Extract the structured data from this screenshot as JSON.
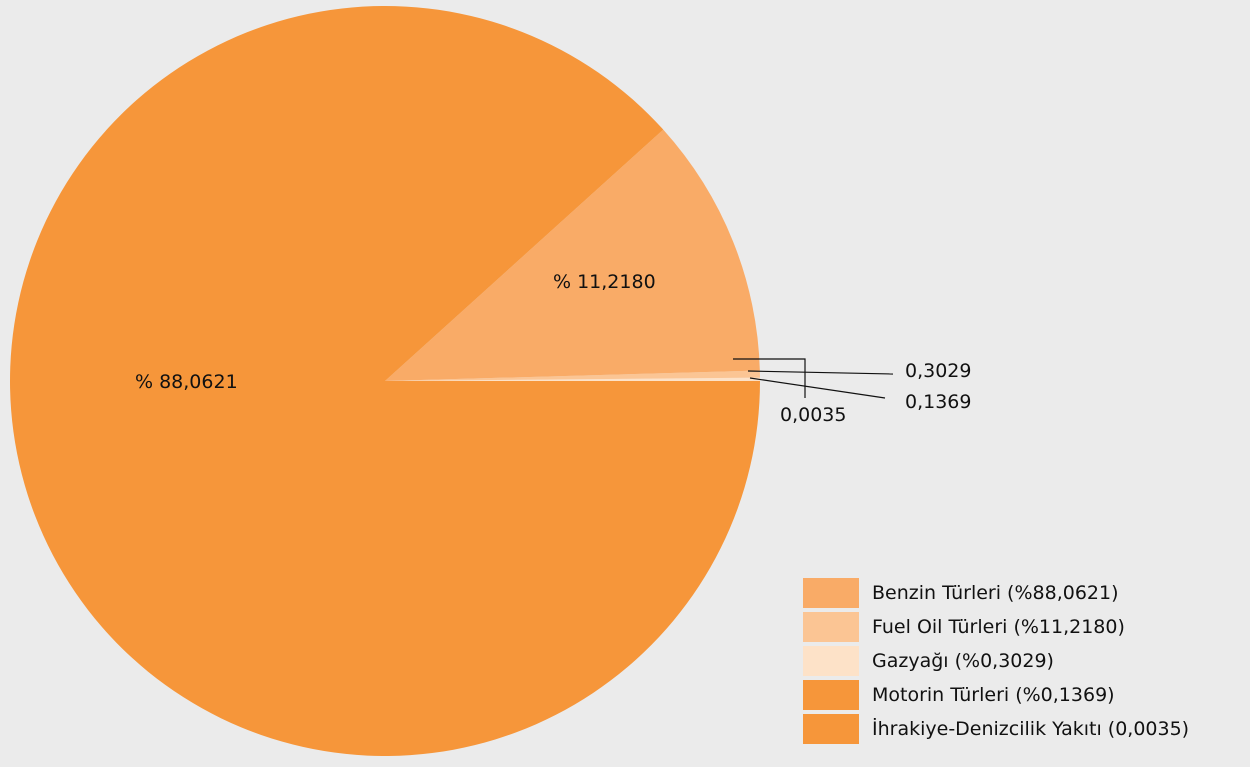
{
  "chart_data": {
    "type": "pie",
    "slices": [
      {
        "label": "Benzin Türleri",
        "value": 88.0621,
        "data_label": "% 88,0621",
        "color": "#f6963a"
      },
      {
        "label": "Fuel Oil Türleri",
        "value": 11.218,
        "data_label": "% 11,2180",
        "color": "#f9ab67"
      },
      {
        "label": "Gazyağı",
        "value": 0.3029,
        "data_label": "0,3029",
        "color": "#fbc594"
      },
      {
        "label": "Motorin Türleri",
        "value": 0.1369,
        "data_label": "0,1369",
        "color": "#fde2c8"
      },
      {
        "label": "İhrakiye-Denizcilik Yakıtı",
        "value": 0.0035,
        "data_label": "0,0035",
        "color": "#f6963a"
      }
    ],
    "legend": {
      "placement": "bottom-right",
      "items": [
        {
          "text": "Benzin Türleri (%88,0621)",
          "color": "#f9ab67"
        },
        {
          "text": "Fuel Oil Türleri (%11,2180)",
          "color": "#fbc594"
        },
        {
          "text": "Gazyağı (%0,3029)",
          "color": "#fde2c8"
        },
        {
          "text": "Motorin Türleri (%0,1369)",
          "color": "#f6963a"
        },
        {
          "text": "İhrakiye-Denizcilik Yakıtı (0,0035)",
          "color": "#f6963a"
        }
      ]
    },
    "background": "#ebebeb"
  }
}
